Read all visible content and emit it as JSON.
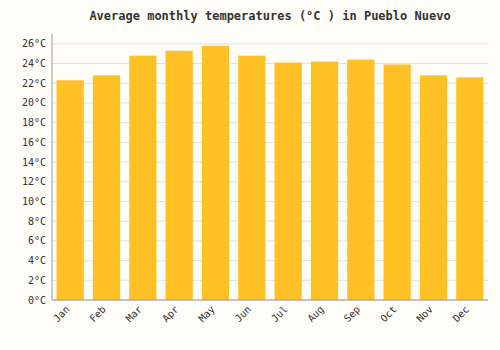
{
  "chart_data": {
    "type": "bar",
    "title": "Average monthly temperatures (°C ) in Pueblo Nuevo",
    "categories": [
      "Jan",
      "Feb",
      "Mar",
      "Apr",
      "May",
      "Jun",
      "Jul",
      "Aug",
      "Sep",
      "Oct",
      "Nov",
      "Dec"
    ],
    "values": [
      22.3,
      22.8,
      24.8,
      25.3,
      25.8,
      24.8,
      24.1,
      24.2,
      24.4,
      23.9,
      22.8,
      22.6
    ],
    "color": "#FFC125",
    "ylim": [
      0,
      27
    ],
    "yticks": [
      {
        "value": 0,
        "label": "0°C"
      },
      {
        "value": 2,
        "label": "2°C"
      },
      {
        "value": 4,
        "label": "4°C"
      },
      {
        "value": 6,
        "label": "6°C"
      },
      {
        "value": 8,
        "label": "8°C"
      },
      {
        "value": 10,
        "label": "10°C"
      },
      {
        "value": 12,
        "label": "12°C"
      },
      {
        "value": 14,
        "label": "14°C"
      },
      {
        "value": 16,
        "label": "16°C"
      },
      {
        "value": 18,
        "label": "18°C"
      },
      {
        "value": 20,
        "label": "20°C"
      },
      {
        "value": 22,
        "label": "22°C"
      },
      {
        "value": 24,
        "label": "24°C"
      },
      {
        "value": 26,
        "label": "26°C"
      }
    ],
    "grid": true
  }
}
